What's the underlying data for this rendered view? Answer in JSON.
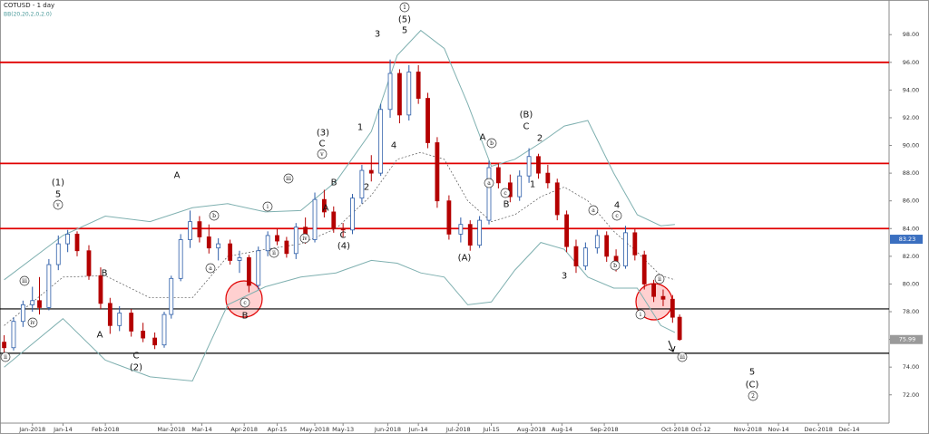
{
  "chart_data": {
    "type": "candlestick",
    "title": "COTUSD - 1 day",
    "indicator": "BB(20,20,2,0,2.0)",
    "xlim": [
      "2017-12-19",
      "2018-12-31"
    ],
    "ylim": [
      71.2,
      98.8
    ],
    "yticks": [
      {
        "value": 72,
        "label": "72.00"
      },
      {
        "value": 74,
        "label": "74.00"
      },
      {
        "value": 76,
        "label": "76.00"
      },
      {
        "value": 78,
        "label": "78.00"
      },
      {
        "value": 80,
        "label": "80.00"
      },
      {
        "value": 82,
        "label": "82.00"
      },
      {
        "value": 84,
        "label": "84.00"
      },
      {
        "value": 86,
        "label": "86.00"
      },
      {
        "value": 88,
        "label": "88.00"
      },
      {
        "value": 90,
        "label": "90.00"
      },
      {
        "value": 92,
        "label": "92.00"
      },
      {
        "value": 94,
        "label": "94.00"
      },
      {
        "value": 96,
        "label": "96.00"
      },
      {
        "value": 98,
        "label": "98.00"
      }
    ],
    "xticks": [
      {
        "value": "2018-01-01",
        "label": "Jan-2018"
      },
      {
        "value": "2018-01-14",
        "label": "Jan-14"
      },
      {
        "value": "2018-02-01",
        "label": "Feb-2018"
      },
      {
        "value": "2018-03-01",
        "label": "Mar-2018"
      },
      {
        "value": "2018-03-14",
        "label": "Mar-14"
      },
      {
        "value": "2018-04-01",
        "label": "Apr-2018"
      },
      {
        "value": "2018-04-15",
        "label": "Apr-15"
      },
      {
        "value": "2018-05-01",
        "label": "May-2018"
      },
      {
        "value": "2018-05-13",
        "label": "May-13"
      },
      {
        "value": "2018-06-01",
        "label": "Jun-2018"
      },
      {
        "value": "2018-06-14",
        "label": "Jun-14"
      },
      {
        "value": "2018-07-01",
        "label": "Jul-2018"
      },
      {
        "value": "2018-07-15",
        "label": "Jul-15"
      },
      {
        "value": "2018-08-01",
        "label": "Aug-2018"
      },
      {
        "value": "2018-08-14",
        "label": "Aug-14"
      },
      {
        "value": "2018-09-01",
        "label": "Sep-2018"
      },
      {
        "value": "2018-10-01",
        "label": "Oct-2018"
      },
      {
        "value": "2018-10-12",
        "label": "Oct-12"
      },
      {
        "value": "2018-11-01",
        "label": "Nov-2018"
      },
      {
        "value": "2018-11-14",
        "label": "Nov-14"
      },
      {
        "value": "2018-12-01",
        "label": "Dec-2018"
      },
      {
        "value": "2018-12-14",
        "label": "Dec-14"
      }
    ],
    "up_color": "#2b5ca8",
    "down_color": "#b40000",
    "x": [
      "2017-12-20",
      "2017-12-24",
      "2017-12-28",
      "2018-01-01",
      "2018-01-04",
      "2018-01-08",
      "2018-01-12",
      "2018-01-16",
      "2018-01-20",
      "2018-01-25",
      "2018-01-30",
      "2018-02-03",
      "2018-02-07",
      "2018-02-12",
      "2018-02-17",
      "2018-02-22",
      "2018-02-26",
      "2018-03-01",
      "2018-03-05",
      "2018-03-09",
      "2018-03-13",
      "2018-03-17",
      "2018-03-21",
      "2018-03-26",
      "2018-03-30",
      "2018-04-03",
      "2018-04-07",
      "2018-04-11",
      "2018-04-15",
      "2018-04-19",
      "2018-04-23",
      "2018-04-27",
      "2018-05-01",
      "2018-05-05",
      "2018-05-09",
      "2018-05-13",
      "2018-05-17",
      "2018-05-21",
      "2018-05-25",
      "2018-05-29",
      "2018-06-02",
      "2018-06-06",
      "2018-06-10",
      "2018-06-14",
      "2018-06-18",
      "2018-06-22",
      "2018-06-27",
      "2018-07-02",
      "2018-07-06",
      "2018-07-10",
      "2018-07-14",
      "2018-07-18",
      "2018-07-23",
      "2018-07-27",
      "2018-07-31",
      "2018-08-04",
      "2018-08-08",
      "2018-08-12",
      "2018-08-16",
      "2018-08-20",
      "2018-08-24",
      "2018-08-29",
      "2018-09-02",
      "2018-09-06",
      "2018-09-10",
      "2018-09-14",
      "2018-09-18",
      "2018-09-22",
      "2018-09-26",
      "2018-09-30",
      "2018-10-03"
    ],
    "open": [
      75.8,
      75.4,
      77.3,
      78.5,
      78.8,
      78.3,
      81.4,
      82.9,
      83.6,
      82.4,
      80.6,
      78.6,
      77.0,
      77.9,
      76.6,
      76.1,
      75.6,
      77.8,
      80.4,
      83.2,
      84.5,
      83.4,
      82.6,
      82.9,
      81.7,
      81.9,
      79.9,
      82.4,
      83.5,
      83.1,
      82.2,
      84.1,
      83.2,
      86.1,
      85.2,
      84.0,
      83.9,
      86.2,
      88.2,
      88.0,
      92.6,
      95.2,
      92.2,
      95.3,
      93.4,
      90.2,
      86.0,
      83.6,
      84.3,
      82.8,
      84.6,
      88.4,
      87.3,
      86.3,
      87.8,
      89.2,
      88.0,
      87.3,
      85.0,
      82.7,
      81.3,
      82.6,
      83.5,
      82.0,
      81.3,
      83.7,
      82.1,
      80.0,
      79.1,
      78.9,
      77.6
    ],
    "high": [
      76.3,
      77.6,
      78.8,
      79.8,
      80.5,
      81.8,
      83.5,
      83.9,
      83.8,
      82.8,
      81.2,
      79.0,
      78.4,
      78.2,
      77.2,
      76.5,
      78.0,
      80.6,
      83.6,
      85.3,
      84.9,
      84.3,
      83.3,
      83.2,
      82.4,
      82.1,
      82.7,
      83.8,
      84.0,
      83.4,
      84.4,
      84.8,
      86.6,
      86.8,
      85.6,
      84.4,
      86.5,
      88.6,
      89.3,
      93.0,
      96.2,
      95.5,
      95.8,
      95.8,
      93.8,
      90.6,
      86.4,
      84.8,
      84.6,
      84.9,
      88.9,
      88.7,
      87.9,
      88.2,
      89.8,
      89.4,
      88.6,
      87.6,
      85.3,
      83.2,
      83.0,
      83.9,
      83.8,
      82.5,
      84.2,
      84.0,
      82.4,
      80.3,
      79.6,
      79.2,
      77.8
    ],
    "low": [
      75.0,
      75.2,
      76.9,
      78.0,
      77.8,
      78.1,
      81.0,
      82.3,
      82.0,
      80.3,
      78.2,
      76.4,
      76.6,
      76.2,
      75.8,
      75.3,
      75.4,
      77.5,
      80.2,
      82.6,
      83.0,
      82.2,
      81.7,
      81.4,
      80.8,
      79.4,
      79.6,
      82.0,
      82.8,
      81.9,
      81.8,
      82.9,
      83.0,
      84.8,
      83.7,
      83.4,
      83.6,
      85.8,
      87.4,
      87.8,
      92.0,
      91.6,
      91.8,
      93.0,
      89.8,
      85.5,
      83.2,
      83.0,
      82.4,
      82.6,
      84.3,
      86.9,
      85.9,
      86.0,
      87.3,
      87.6,
      86.9,
      84.6,
      82.3,
      80.8,
      81.0,
      82.2,
      81.6,
      80.9,
      81.1,
      81.7,
      79.6,
      78.7,
      78.4,
      77.2,
      75.9
    ],
    "close": [
      75.4,
      77.3,
      78.5,
      78.8,
      78.3,
      81.4,
      82.9,
      83.6,
      82.4,
      80.6,
      78.6,
      77.0,
      77.9,
      76.6,
      76.1,
      75.6,
      77.8,
      80.4,
      83.2,
      84.5,
      83.4,
      82.6,
      82.9,
      81.7,
      81.9,
      79.9,
      82.4,
      83.5,
      83.1,
      82.2,
      84.1,
      83.2,
      86.1,
      85.2,
      84.0,
      83.9,
      86.2,
      88.2,
      88.0,
      92.6,
      95.2,
      92.2,
      95.3,
      93.4,
      90.2,
      86.0,
      83.6,
      84.3,
      82.8,
      84.6,
      88.4,
      87.3,
      86.3,
      87.8,
      89.2,
      88.0,
      87.3,
      85.0,
      82.7,
      81.3,
      82.6,
      83.5,
      82.0,
      81.3,
      83.7,
      82.1,
      80.0,
      79.1,
      78.9,
      77.6,
      75.99
    ],
    "bands": {
      "color": "#7fb0b0",
      "x": [
        "2017-12-20",
        "2018-01-14",
        "2018-02-01",
        "2018-02-20",
        "2018-03-10",
        "2018-03-25",
        "2018-04-10",
        "2018-04-25",
        "2018-05-10",
        "2018-05-25",
        "2018-06-05",
        "2018-06-15",
        "2018-06-25",
        "2018-07-05",
        "2018-07-15",
        "2018-07-25",
        "2018-08-05",
        "2018-08-15",
        "2018-08-25",
        "2018-09-05",
        "2018-09-15",
        "2018-09-25",
        "2018-10-01"
      ],
      "upper": [
        80.3,
        83.5,
        84.9,
        84.5,
        85.5,
        85.8,
        85.2,
        85.3,
        87.4,
        91.0,
        96.5,
        98.3,
        97.0,
        93.0,
        88.5,
        89.0,
        90.2,
        91.4,
        91.8,
        88.0,
        85.0,
        84.2,
        84.3
      ],
      "middle": [
        77.0,
        80.5,
        80.6,
        79.0,
        79.0,
        82.0,
        82.5,
        82.9,
        84.0,
        86.4,
        89.0,
        89.5,
        89.0,
        86.0,
        84.5,
        85.0,
        86.3,
        87.0,
        86.0,
        83.8,
        82.3,
        80.6,
        80.3
      ],
      "lower": [
        74.0,
        77.5,
        74.5,
        73.3,
        73.0,
        78.5,
        79.8,
        80.5,
        80.8,
        81.7,
        81.5,
        80.8,
        80.5,
        78.5,
        78.7,
        81.0,
        83.0,
        82.5,
        80.5,
        79.7,
        79.7,
        77.0,
        76.5
      ]
    },
    "levels": [
      {
        "value": 96,
        "color": "#e00000"
      },
      {
        "value": 88.7,
        "color": "#e00000"
      },
      {
        "value": 84,
        "color": "#e00000"
      },
      {
        "value": 78.2,
        "color": "#000000"
      },
      {
        "value": 75,
        "color": "#000000"
      }
    ],
    "price_labels": [
      {
        "value": 83.23,
        "label": "83.23",
        "color": "#3b6fc0"
      },
      {
        "value": 75.99,
        "label": "75.99",
        "color": "#9a9a9a"
      }
    ],
    "annotations": [
      {
        "text": "(1)",
        "circled": false
      },
      {
        "text": "5",
        "circled": false
      },
      {
        "text": "v",
        "circled": true
      },
      {
        "text": "iii",
        "circled": true
      },
      {
        "text": "iv",
        "circled": true
      },
      {
        "text": "ii",
        "circled": true
      },
      {
        "text": "B",
        "circled": false
      },
      {
        "text": "A",
        "circled": false
      },
      {
        "text": "C",
        "circled": false
      },
      {
        "text": "(2)",
        "circled": false
      },
      {
        "text": "A",
        "circled": false
      },
      {
        "text": "b",
        "circled": true
      },
      {
        "text": "a",
        "circled": true
      },
      {
        "text": "c",
        "circled": true
      },
      {
        "text": "B",
        "circled": false
      },
      {
        "text": "i",
        "circled": true
      },
      {
        "text": "ii",
        "circled": true
      },
      {
        "text": "iii",
        "circled": true
      },
      {
        "text": "iv",
        "circled": true
      },
      {
        "text": "(3)",
        "circled": false
      },
      {
        "text": "C",
        "circled": false
      },
      {
        "text": "v",
        "circled": true
      },
      {
        "text": "B",
        "circled": false
      },
      {
        "text": "A",
        "circled": false
      },
      {
        "text": "C",
        "circled": false
      },
      {
        "text": "(4)",
        "circled": false
      },
      {
        "text": "1",
        "circled": false
      },
      {
        "text": "2",
        "circled": false
      },
      {
        "text": "3",
        "circled": false
      },
      {
        "text": "4",
        "circled": false
      },
      {
        "text": "1",
        "circled": true
      },
      {
        "text": "(5)",
        "circled": false
      },
      {
        "text": "5",
        "circled": false
      },
      {
        "text": "A",
        "circled": false
      },
      {
        "text": "b",
        "circled": true
      },
      {
        "text": "a",
        "circled": true
      },
      {
        "text": "c",
        "circled": true
      },
      {
        "text": "B",
        "circled": false
      },
      {
        "text": "(A)",
        "circled": false
      },
      {
        "text": "(B)",
        "circled": false
      },
      {
        "text": "C",
        "circled": false
      },
      {
        "text": "2",
        "circled": false
      },
      {
        "text": "1",
        "circled": false
      },
      {
        "text": "3",
        "circled": false
      },
      {
        "text": "a",
        "circled": true
      },
      {
        "text": "4",
        "circled": false
      },
      {
        "text": "c",
        "circled": true
      },
      {
        "text": "b",
        "circled": true
      },
      {
        "text": "i",
        "circled": true
      },
      {
        "text": "ii",
        "circled": true
      },
      {
        "text": "iii",
        "circled": true
      },
      {
        "text": "5",
        "circled": false
      },
      {
        "text": "(C)",
        "circled": false
      },
      {
        "text": "2",
        "circled": true
      }
    ]
  }
}
